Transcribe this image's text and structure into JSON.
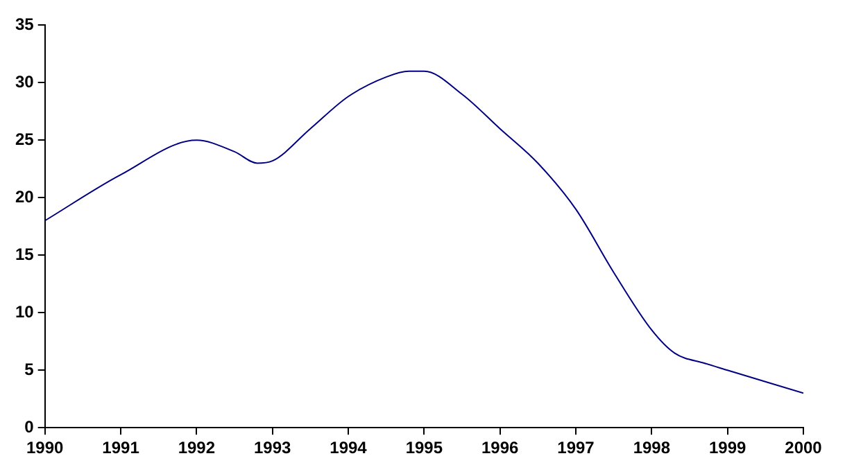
{
  "chart_data": {
    "type": "line",
    "x": [
      1990,
      1991,
      1992,
      1992.5,
      1992.8,
      1993,
      1993.5,
      1994,
      1994.5,
      1994.8,
      1995,
      1995.5,
      1996,
      1996.5,
      1997,
      1997.5,
      1998,
      1998.3,
      1998.7,
      1999,
      2000
    ],
    "series": [
      {
        "color": "#000080",
        "values": [
          18,
          22,
          25,
          24,
          23,
          23.2,
          26,
          28.8,
          30.5,
          31,
          31,
          29,
          26,
          23,
          19,
          13.5,
          8.5,
          6.5,
          5.6,
          5,
          3
        ]
      }
    ],
    "xlim": [
      1990,
      2000
    ],
    "xticks": [
      1990,
      1991,
      1992,
      1993,
      1994,
      1995,
      1996,
      1997,
      1998,
      1999,
      2000
    ],
    "ylim": [
      0,
      35
    ],
    "yticks": [
      0,
      5,
      10,
      15,
      20,
      25,
      30,
      35
    ],
    "grid": false,
    "legend": false,
    "marker": "none",
    "line_style": "solid"
  }
}
